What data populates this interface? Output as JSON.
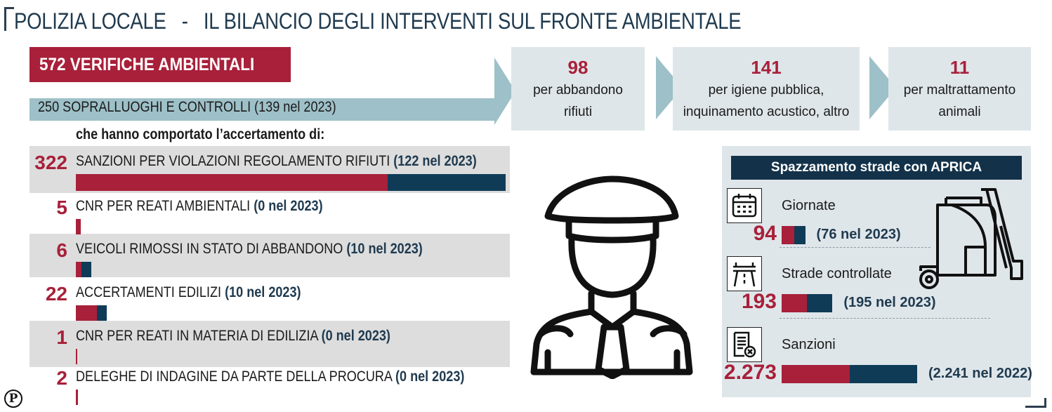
{
  "header": {
    "title": "POLIZIA LOCALE   -   IL BILANCIO DEGLI INTERVENTI SUL FRONTE AMBIENTALE"
  },
  "verifiche": {
    "label": "572 VERIFICHE AMBIENTALI"
  },
  "sopralluoghi": {
    "label": "250 SOPRALLUOGHI E CONTROLLI (139 nel 2023)"
  },
  "categories": [
    {
      "num": "98",
      "line1": "per abbandono",
      "line2": "rifiuti"
    },
    {
      "num": "141",
      "line1": "per igiene pubblica,",
      "line2": "inquinamento acustico, altro"
    },
    {
      "num": "11",
      "line1": "per maltrattamento",
      "line2": "animali"
    }
  ],
  "accertamento_intro": "che hanno comportato l’accertamento di:",
  "rows": [
    {
      "num": "322",
      "label": "SANZIONI PER VIOLAZIONI REGOLAMENTO RIFIUTI",
      "prev": "(122 nel 2023)",
      "value": 322,
      "prev_value": 122
    },
    {
      "num": "5",
      "label": "CNR PER REATI AMBIENTALI",
      "prev": "(0 nel 2023)",
      "value": 5,
      "prev_value": 0
    },
    {
      "num": "6",
      "label": "VEICOLI RIMOSSI IN STATO DI ABBANDONO",
      "prev": "(10 nel 2023)",
      "value": 6,
      "prev_value": 10
    },
    {
      "num": "22",
      "label": "ACCERTAMENTI EDILIZI",
      "prev": "(10 nel 2023)",
      "value": 22,
      "prev_value": 10
    },
    {
      "num": "1",
      "label": "CNR PER REATI IN MATERIA DI EDILIZIA",
      "prev": "(0 nel 2023)",
      "value": 1,
      "prev_value": 0
    },
    {
      "num": "2",
      "label": "DELEGHE DI INDAGINE DA PARTE DELLA PROCURA",
      "prev": "(0 nel 2023)",
      "value": 2,
      "prev_value": 0
    }
  ],
  "panel": {
    "title": "Spazzamento strade con APRICA",
    "items": [
      {
        "label": "Giornate",
        "num": "94",
        "prev": "(76 nel 2023)",
        "icon": "calendar-icon",
        "value": 94,
        "prev_value": 76
      },
      {
        "label": "Strade controllate",
        "num": "193",
        "prev": "(195 nel 2023)",
        "icon": "road-icon",
        "value": 193,
        "prev_value": 195
      },
      {
        "label": "Sanzioni",
        "num": "2.273",
        "prev": "(2.241 nel 2022)",
        "icon": "document-fine-icon",
        "value": 2273,
        "prev_value": 2241
      }
    ]
  },
  "illustrations": {
    "officer": "police-officer-icon",
    "sweeper": "street-sweeper-icon"
  },
  "logo": {
    "letter": "P"
  },
  "colors": {
    "current": "#a8203a",
    "previous": "#0f3b57",
    "panel_bg": "#dfe6ea",
    "arrow": "#9ec0c8"
  }
}
